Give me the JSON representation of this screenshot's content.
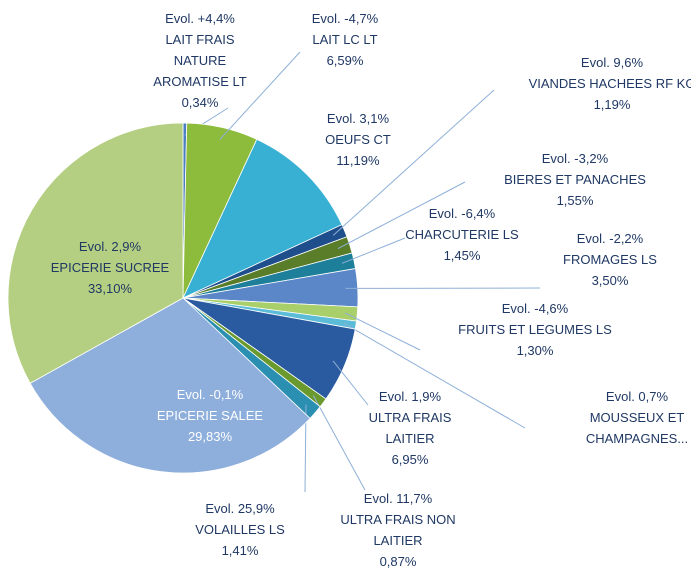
{
  "chart_data": {
    "type": "pie",
    "categories": [
      "LAIT FRAIS NATURE AROMATISE LT",
      "LAIT LC LT",
      "OEUFS CT",
      "VIANDES HACHEES RF KG",
      "BIERES ET PANACHES",
      "CHARCUTERIE LS",
      "FROMAGES LS",
      "FRUITS ET LEGUMES LS",
      "MOUSSEUX ET CHAMPAGNES...",
      "ULTRA FRAIS LAITIER",
      "ULTRA FRAIS NON LAITIER",
      "VOLAILLES LS",
      "EPICERIE SALEE",
      "EPICERIE SUCREE"
    ],
    "values": [
      0.34,
      6.59,
      11.19,
      1.19,
      1.55,
      1.45,
      3.5,
      1.3,
      0.73,
      6.95,
      0.87,
      1.41,
      29.83,
      33.1
    ],
    "value_labels": [
      "0,34%",
      "6,59%",
      "11,19%",
      "1,19%",
      "1,55%",
      "1,45%",
      "3,50%",
      "1,30%",
      null,
      "6,95%",
      "0,87%",
      "1,41%",
      "29,83%",
      "33,10%"
    ],
    "evolutions": [
      "Evol. +4,4%",
      "Evol.  -4,7%",
      "Evol. 3,1%",
      "Evol. 9,6%",
      "Evol. -3,2%",
      "Evol. -6,4%",
      "Evol. -2,2%",
      "Evol. -4,6%",
      "Evol. 0,7%",
      "Evol. 1,9%",
      "Evol. 11,7%",
      "Evol. 25,9%",
      "Evol. -0,1%",
      "Evol. 2,9%"
    ],
    "colors": [
      "#4a7fc1",
      "#8dbb3c",
      "#38b0d4",
      "#1f4e8c",
      "#5a7d2a",
      "#1e7f9a",
      "#5b87c8",
      "#a9cf6a",
      "#5cbcd8",
      "#2a5aa0",
      "#6a9a2e",
      "#2a8fb0",
      "#8eaedc",
      "#b5cf82"
    ]
  }
}
